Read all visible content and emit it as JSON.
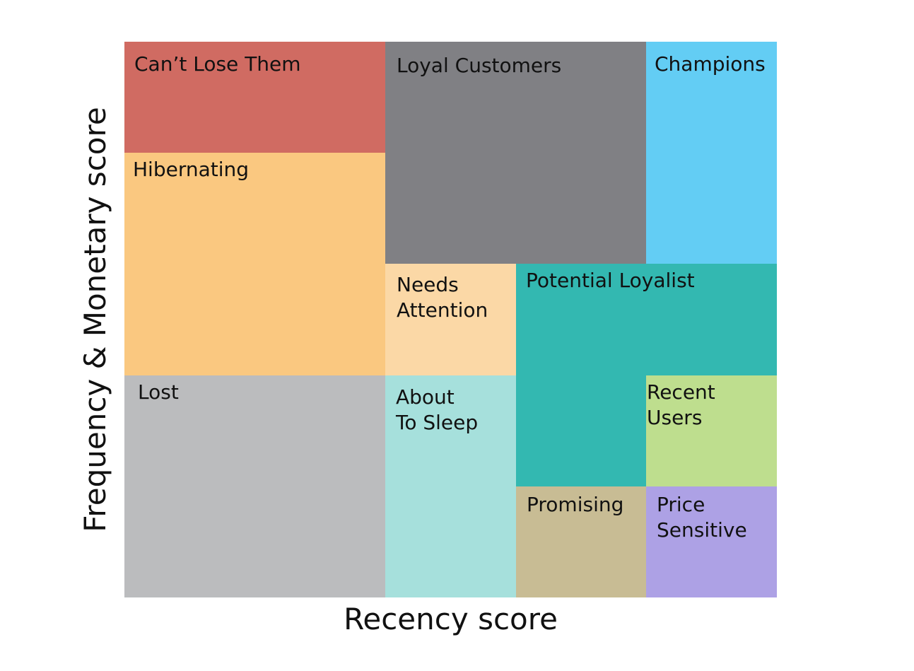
{
  "axes": {
    "x_label": "Recency score",
    "y_label": "Frequency & Monetary score"
  },
  "segments": [
    {
      "key": "cant_lose_them",
      "label": "Can’t Lose Them",
      "color": "#D06B62"
    },
    {
      "key": "loyal_customers",
      "label": "Loyal Customers",
      "color": "#808084"
    },
    {
      "key": "champions",
      "label": "Champions",
      "color": "#63CDF4"
    },
    {
      "key": "hibernating",
      "label": "Hibernating",
      "color": "#FAC880"
    },
    {
      "key": "needs_attention",
      "label": "Needs\nAttention",
      "color": "#FBD8A6"
    },
    {
      "key": "potential_loyalist",
      "label": "Potential Loyalist",
      "color": "#33B8B1"
    },
    {
      "key": "lost",
      "label": "Lost",
      "color": "#BBBCBE"
    },
    {
      "key": "about_to_sleep",
      "label": "About\nTo Sleep",
      "color": "#A6E0DC"
    },
    {
      "key": "recent_users",
      "label": "Recent Users",
      "color": "#BEDE8E"
    },
    {
      "key": "promising",
      "label": "Promising",
      "color": "#C8BC94"
    },
    {
      "key": "price_sensitive",
      "label": "Price\nSensitive",
      "color": "#ADA1E5"
    }
  ]
}
